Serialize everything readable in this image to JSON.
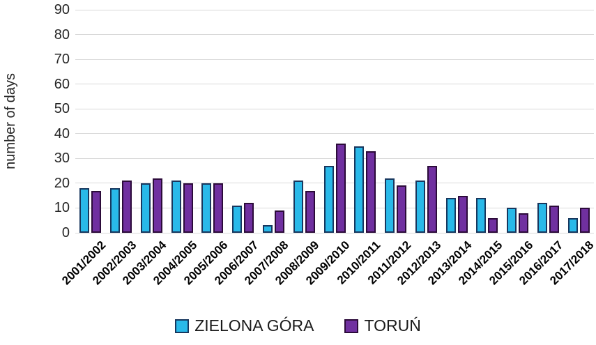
{
  "chart_data": {
    "type": "bar",
    "title": "",
    "xlabel": "",
    "ylabel": "number of days",
    "ylim": [
      0,
      90
    ],
    "ytick_step": 10,
    "yticks": [
      0,
      10,
      20,
      30,
      40,
      50,
      60,
      70,
      80,
      90
    ],
    "grid": true,
    "gridline_color": "#d9d9d9",
    "legend_position": "bottom",
    "text_color": "#262626",
    "categories": [
      "2001/2002",
      "2002/2003",
      "2003/2004",
      "2004/2005",
      "2005/2006",
      "2006/2007",
      "2007/2008",
      "2008/2009",
      "2009/2010",
      "2010/2011",
      "2011/2012",
      "2012/2013",
      "2013/2014",
      "2014/2015",
      "2015/2016",
      "2016/2017",
      "2017/2018"
    ],
    "series": [
      {
        "name": "ZIELONA GÓRA",
        "color": "#29b9e9",
        "border_color": "#17375e",
        "values": [
          18,
          18,
          20,
          21,
          20,
          11,
          3,
          21,
          27,
          35,
          22,
          21,
          14,
          14,
          10,
          12,
          6
        ]
      },
      {
        "name": "TORUŃ",
        "color": "#7030a0",
        "border_color": "#2c0b3a",
        "values": [
          17,
          21,
          22,
          20,
          20,
          12,
          9,
          17,
          36,
          33,
          19,
          27,
          15,
          6,
          8,
          11,
          10
        ]
      }
    ]
  }
}
